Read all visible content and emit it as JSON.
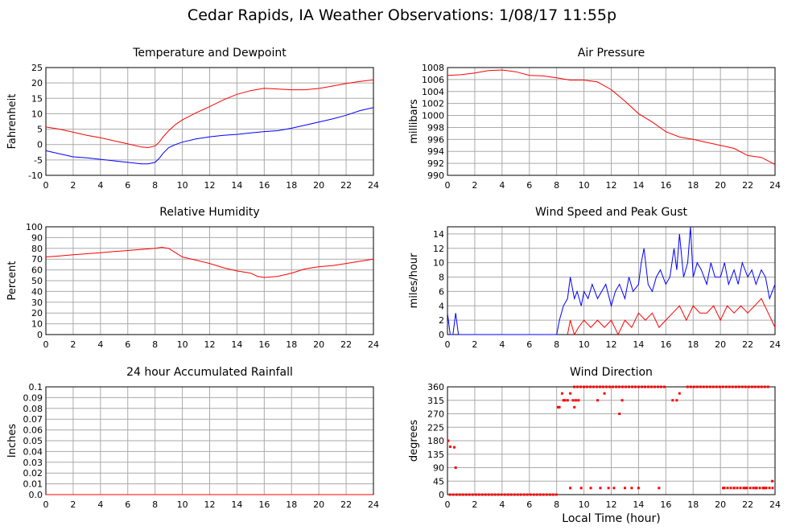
{
  "page_title": "Cedar Rapids, IA Weather Observations: 1/08/17 11:55p",
  "colors": {
    "red": "#ff0000",
    "blue": "#0000ff",
    "grid": "#aaaaaa",
    "axis": "#000000"
  },
  "chart_data": [
    {
      "id": "temp",
      "type": "line",
      "title": "Temperature and Dewpoint",
      "xlabel": "",
      "ylabel": "Fahrenheit",
      "xlim": [
        0,
        24
      ],
      "ylim": [
        -10,
        25
      ],
      "xticks": [
        0,
        2,
        4,
        6,
        8,
        10,
        12,
        14,
        16,
        18,
        20,
        22,
        24
      ],
      "yticks": [
        -10,
        -5,
        0,
        5,
        10,
        15,
        20,
        25
      ],
      "grid": true,
      "series": [
        {
          "color": "#ff0000",
          "x": [
            0,
            1,
            2,
            3,
            4,
            5,
            6,
            7,
            7.5,
            8,
            8.3,
            8.6,
            9,
            9.5,
            10,
            11,
            12,
            13,
            14,
            15,
            16,
            17,
            18,
            19,
            20,
            21,
            22,
            23,
            24
          ],
          "y": [
            5.7,
            5,
            4,
            3,
            2.2,
            1.2,
            0.2,
            -0.8,
            -1,
            -0.5,
            0.8,
            2.5,
            4.5,
            6.5,
            8,
            10.3,
            12.3,
            14.5,
            16.3,
            17.5,
            18.3,
            18,
            17.8,
            17.8,
            18.2,
            19,
            19.8,
            20.5,
            21
          ]
        },
        {
          "color": "#0000ff",
          "x": [
            0,
            1,
            2,
            3,
            4,
            5,
            6,
            7,
            7.5,
            8,
            8.3,
            8.6,
            9,
            9.5,
            10,
            11,
            12,
            13,
            14,
            15,
            16,
            17,
            18,
            19,
            20,
            21,
            22,
            23,
            24
          ],
          "y": [
            -2,
            -3,
            -4,
            -4.3,
            -4.8,
            -5.3,
            -5.8,
            -6.3,
            -6.3,
            -5.8,
            -4.5,
            -2.8,
            -1,
            0,
            0.8,
            1.8,
            2.5,
            3,
            3.3,
            3.8,
            4.2,
            4.5,
            5.3,
            6.3,
            7.3,
            8.3,
            9.5,
            11,
            12
          ]
        }
      ]
    },
    {
      "id": "pressure",
      "type": "line",
      "title": "Air Pressure",
      "xlabel": "",
      "ylabel": "millibars",
      "xlim": [
        0,
        24
      ],
      "ylim": [
        990,
        1008
      ],
      "xticks": [
        0,
        2,
        4,
        6,
        8,
        10,
        12,
        14,
        16,
        18,
        20,
        22,
        24
      ],
      "yticks": [
        990,
        992,
        994,
        996,
        998,
        1000,
        1002,
        1004,
        1006,
        1008
      ],
      "grid": true,
      "series": [
        {
          "color": "#ff0000",
          "x": [
            0,
            1,
            2,
            3,
            4,
            5,
            6,
            7,
            8,
            9,
            10,
            11,
            12,
            13,
            14,
            15,
            16,
            17,
            18,
            19,
            20,
            21,
            22,
            23,
            24
          ],
          "y": [
            1006.7,
            1006.8,
            1007.1,
            1007.5,
            1007.6,
            1007.3,
            1006.7,
            1006.6,
            1006.3,
            1005.9,
            1005.9,
            1005.6,
            1004.3,
            1002.4,
            1000.3,
            998.9,
            997.3,
            996.4,
            996,
            995.5,
            995,
            994.5,
            993.3,
            993,
            991.8
          ]
        }
      ]
    },
    {
      "id": "humidity",
      "type": "line",
      "title": "Relative Humidity",
      "xlabel": "",
      "ylabel": "Percent",
      "xlim": [
        0,
        24
      ],
      "ylim": [
        0,
        100
      ],
      "xticks": [
        0,
        2,
        4,
        6,
        8,
        10,
        12,
        14,
        16,
        18,
        20,
        22,
        24
      ],
      "yticks": [
        0,
        10,
        20,
        30,
        40,
        50,
        60,
        70,
        80,
        90,
        100
      ],
      "grid": true,
      "series": [
        {
          "color": "#ff0000",
          "x": [
            0,
            1,
            2,
            3,
            4,
            5,
            6,
            7,
            8,
            8.5,
            9,
            9.5,
            10,
            11,
            12,
            13,
            14,
            15,
            15.5,
            16,
            17,
            18,
            19,
            20,
            21,
            22,
            23,
            24
          ],
          "y": [
            72,
            73,
            74,
            75,
            76,
            77,
            78,
            79,
            80,
            81,
            80,
            76,
            72,
            69,
            66,
            62,
            59,
            57,
            54,
            53,
            54,
            57,
            61,
            63,
            64,
            66,
            68,
            70
          ]
        }
      ]
    },
    {
      "id": "wind",
      "type": "line",
      "title": "Wind Speed and Peak Gust",
      "xlabel": "",
      "ylabel": "miles/hour",
      "xlim": [
        0,
        24
      ],
      "ylim": [
        0,
        15
      ],
      "xticks": [
        0,
        2,
        4,
        6,
        8,
        10,
        12,
        14,
        16,
        18,
        20,
        22,
        24
      ],
      "yticks": [
        0,
        2,
        4,
        6,
        8,
        10,
        12,
        14
      ],
      "grid": true,
      "series": [
        {
          "color": "#0000ff",
          "x": [
            0,
            0.2,
            0.4,
            0.6,
            0.8,
            1,
            8,
            8.2,
            8.5,
            8.8,
            9,
            9.3,
            9.5,
            9.8,
            10,
            10.3,
            10.6,
            11,
            11.3,
            11.6,
            12,
            12.3,
            12.6,
            13,
            13.3,
            13.6,
            14,
            14.2,
            14.4,
            14.7,
            15,
            15.3,
            15.6,
            16,
            16.3,
            16.6,
            16.8,
            17,
            17.3,
            17.6,
            17.8,
            18,
            18.3,
            18.6,
            19,
            19.3,
            19.6,
            20,
            20.3,
            20.6,
            21,
            21.3,
            21.6,
            22,
            22.3,
            22.6,
            23,
            23.3,
            23.6,
            24
          ],
          "y": [
            3,
            0,
            0,
            3,
            0,
            0,
            0,
            2,
            4,
            5,
            8,
            5,
            6,
            4,
            6,
            5,
            7,
            5,
            6,
            7,
            4,
            6,
            7,
            5,
            8,
            6,
            7,
            10,
            12,
            7,
            6,
            8,
            9,
            7,
            8,
            12,
            9,
            14,
            8,
            10,
            15,
            8,
            10,
            9,
            7,
            10,
            8,
            8,
            10,
            7,
            9,
            7,
            10,
            8,
            9,
            7,
            9,
            8,
            5,
            7
          ]
        },
        {
          "color": "#ff0000",
          "x": [
            8.8,
            9,
            9.3,
            9.6,
            10,
            10.5,
            11,
            11.5,
            12,
            12.5,
            13,
            13.5,
            14,
            14.5,
            15,
            15.5,
            16,
            16.5,
            17,
            17.5,
            18,
            18.5,
            19,
            19.5,
            20,
            20.5,
            21,
            21.5,
            22,
            22.5,
            23,
            23.5,
            24
          ],
          "y": [
            0,
            2,
            0,
            1,
            2,
            1,
            2,
            1,
            2,
            0,
            2,
            1,
            3,
            2,
            3,
            1,
            2,
            3,
            4,
            2,
            4,
            3,
            3,
            4,
            2,
            4,
            3,
            4,
            3,
            4,
            5,
            3,
            1
          ]
        }
      ]
    },
    {
      "id": "rain",
      "type": "line",
      "title": "24 hour Accumulated Rainfall",
      "xlabel": "",
      "ylabel": "Inches",
      "xlim": [
        0,
        24
      ],
      "ylim": [
        0,
        0.1
      ],
      "xticks": [
        0,
        2,
        4,
        6,
        8,
        10,
        12,
        14,
        16,
        18,
        20,
        22,
        24
      ],
      "yticks": [
        0,
        0.01,
        0.02,
        0.03,
        0.04,
        0.05,
        0.06,
        0.07,
        0.08,
        0.09,
        0.1
      ],
      "yticklabels": [
        "0.0",
        "0.01",
        "0.02",
        "0.03",
        "0.04",
        "0.05",
        "0.06",
        "0.07",
        "0.08",
        "0.09",
        "0.1"
      ],
      "grid": true,
      "series": [
        {
          "color": "#ff0000",
          "x": [
            0,
            24
          ],
          "y": [
            0,
            0
          ]
        }
      ]
    },
    {
      "id": "direction",
      "type": "scatter",
      "title": "Wind Direction",
      "xlabel": "Local Time (hour)",
      "ylabel": "degrees",
      "xlim": [
        0,
        24
      ],
      "ylim": [
        0,
        360
      ],
      "xticks": [
        0,
        2,
        4,
        6,
        8,
        10,
        12,
        14,
        16,
        18,
        20,
        22,
        24
      ],
      "yticks": [
        0,
        45,
        90,
        135,
        180,
        225,
        270,
        315,
        360
      ],
      "grid": true,
      "series": [
        {
          "color": "#ff0000",
          "x": [
            0.05,
            0.2,
            0.5,
            0.6,
            8.1,
            8.2,
            8.4,
            8.5,
            8.6,
            8.8,
            9.0,
            9.2,
            9.3,
            9.4,
            9.6,
            11.5,
            12.8,
            11.0,
            16.5,
            16.8,
            17.0,
            12.6,
            9.0,
            9.8,
            10.5,
            11.2,
            11.8,
            12.2,
            13.0,
            13.5,
            14.0,
            15.5,
            20.2,
            21.0,
            21.8,
            22.6,
            23.2,
            23.8
          ],
          "y": [
            180,
            160,
            158,
            90,
            292,
            292,
            338,
            315,
            315,
            315,
            338,
            315,
            292,
            315,
            315,
            338,
            315,
            315,
            315,
            315,
            338,
            270,
            22,
            22,
            22,
            22,
            22,
            22,
            22,
            22,
            22,
            22,
            22,
            22,
            22,
            22,
            22,
            45
          ]
        }
      ],
      "bands": [
        {
          "value": 0,
          "from": 0.1,
          "to": 8.1
        },
        {
          "value": 360,
          "from": 9.2,
          "to": 16.0
        },
        {
          "value": 360,
          "from": 17.5,
          "to": 23.6
        },
        {
          "value": 22,
          "from": 20.2,
          "to": 23.9
        }
      ]
    }
  ]
}
